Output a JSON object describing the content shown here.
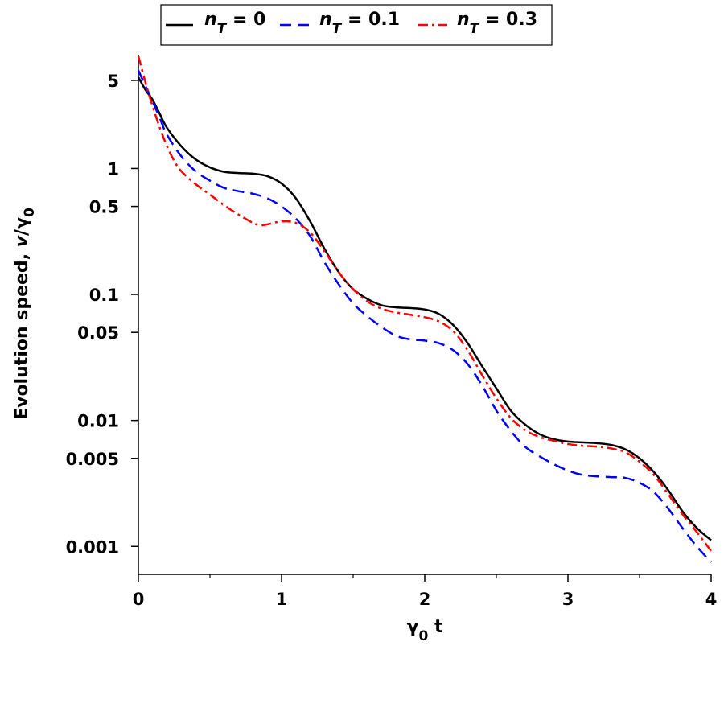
{
  "chart_data": {
    "type": "line",
    "title": "",
    "xlabel": {
      "main": "γ",
      "sub": "0",
      "suffix": " t"
    },
    "ylabel": {
      "prefix": "Evolution speed, ",
      "v": "v",
      "slash": "/γ",
      "sub": "0"
    },
    "xlim": [
      0,
      4
    ],
    "ylim": [
      0.0006,
      8
    ],
    "yscale": "log",
    "x_ticks": [
      {
        "value": 0,
        "label": "0"
      },
      {
        "value": 1,
        "label": "1"
      },
      {
        "value": 2,
        "label": "2"
      },
      {
        "value": 3,
        "label": "3"
      },
      {
        "value": 4,
        "label": "4"
      }
    ],
    "x_minor_ticks": [
      0.5,
      1.5,
      2.5,
      3.5
    ],
    "y_ticks": [
      {
        "value": 5,
        "label": "5"
      },
      {
        "value": 1,
        "label": "1"
      },
      {
        "value": 0.5,
        "label": "0.5"
      },
      {
        "value": 0.1,
        "label": "0.1"
      },
      {
        "value": 0.05,
        "label": "0.05"
      },
      {
        "value": 0.01,
        "label": "0.01"
      },
      {
        "value": 0.005,
        "label": "0.005"
      },
      {
        "value": 0.001,
        "label": "0.001"
      }
    ],
    "grid": false,
    "legend_position": "top-center",
    "series": [
      {
        "name": "n_T = 0",
        "legend": {
          "n": "n",
          "sub": "T",
          "rest": " = 0"
        },
        "color": "#000000",
        "dash": "solid",
        "x": [
          0,
          0.05,
          0.1,
          0.15,
          0.2,
          0.3,
          0.4,
          0.5,
          0.6,
          0.7,
          0.8,
          0.9,
          1.0,
          1.1,
          1.2,
          1.3,
          1.4,
          1.5,
          1.6,
          1.7,
          1.8,
          1.9,
          2.0,
          2.1,
          2.2,
          2.3,
          2.4,
          2.5,
          2.6,
          2.7,
          2.8,
          2.9,
          3.0,
          3.1,
          3.2,
          3.3,
          3.4,
          3.5,
          3.6,
          3.7,
          3.8,
          3.9,
          4.0
        ],
        "values": [
          5.3,
          4.2,
          3.5,
          2.7,
          2.1,
          1.5,
          1.18,
          1.02,
          0.94,
          0.92,
          0.91,
          0.87,
          0.76,
          0.58,
          0.38,
          0.23,
          0.15,
          0.11,
          0.092,
          0.082,
          0.079,
          0.078,
          0.076,
          0.07,
          0.057,
          0.041,
          0.027,
          0.018,
          0.012,
          0.0093,
          0.0078,
          0.0071,
          0.0068,
          0.0067,
          0.0066,
          0.0064,
          0.0059,
          0.005,
          0.0039,
          0.0028,
          0.0019,
          0.0014,
          0.00112
        ]
      },
      {
        "name": "n_T = 0.1",
        "legend": {
          "n": "n",
          "sub": "T",
          "rest": " = 0.1"
        },
        "color": "#0000ff",
        "dash": "dashed",
        "x": [
          0,
          0.05,
          0.1,
          0.15,
          0.2,
          0.3,
          0.4,
          0.5,
          0.6,
          0.7,
          0.8,
          0.9,
          1.0,
          1.1,
          1.2,
          1.3,
          1.4,
          1.5,
          1.6,
          1.7,
          1.8,
          1.9,
          2.0,
          2.1,
          2.2,
          2.3,
          2.4,
          2.5,
          2.6,
          2.7,
          2.8,
          2.9,
          3.0,
          3.1,
          3.2,
          3.3,
          3.4,
          3.5,
          3.6,
          3.7,
          3.8,
          3.9,
          4.0
        ],
        "values": [
          6.0,
          4.5,
          3.4,
          2.5,
          1.85,
          1.25,
          0.95,
          0.8,
          0.7,
          0.66,
          0.63,
          0.58,
          0.5,
          0.4,
          0.29,
          0.18,
          0.12,
          0.085,
          0.067,
          0.055,
          0.047,
          0.044,
          0.043,
          0.041,
          0.036,
          0.028,
          0.019,
          0.012,
          0.0083,
          0.0062,
          0.0052,
          0.0045,
          0.004,
          0.0037,
          0.0036,
          0.00355,
          0.0035,
          0.0032,
          0.0027,
          0.002,
          0.0014,
          0.001,
          0.00075
        ]
      },
      {
        "name": "n_T = 0.3",
        "legend": {
          "n": "n",
          "sub": "T",
          "rest": " = 0.3"
        },
        "color": "#ff0000",
        "dash": "dashdot",
        "x": [
          0,
          0.05,
          0.1,
          0.15,
          0.2,
          0.25,
          0.3,
          0.4,
          0.5,
          0.6,
          0.7,
          0.8,
          0.85,
          0.9,
          1.0,
          1.1,
          1.2,
          1.3,
          1.4,
          1.5,
          1.6,
          1.7,
          1.8,
          1.9,
          2.0,
          2.1,
          2.2,
          2.3,
          2.4,
          2.5,
          2.6,
          2.7,
          2.8,
          2.9,
          3.0,
          3.1,
          3.2,
          3.3,
          3.4,
          3.5,
          3.6,
          3.7,
          3.8,
          3.9,
          4.0
        ],
        "values": [
          7.8,
          4.8,
          3.1,
          2.1,
          1.5,
          1.15,
          0.95,
          0.75,
          0.62,
          0.51,
          0.43,
          0.37,
          0.355,
          0.36,
          0.38,
          0.37,
          0.31,
          0.22,
          0.15,
          0.11,
          0.088,
          0.077,
          0.072,
          0.069,
          0.066,
          0.061,
          0.051,
          0.036,
          0.023,
          0.015,
          0.0105,
          0.0084,
          0.0074,
          0.0069,
          0.0065,
          0.0063,
          0.0062,
          0.006,
          0.0056,
          0.0047,
          0.0037,
          0.0026,
          0.0018,
          0.0013,
          0.00092
        ]
      }
    ]
  }
}
